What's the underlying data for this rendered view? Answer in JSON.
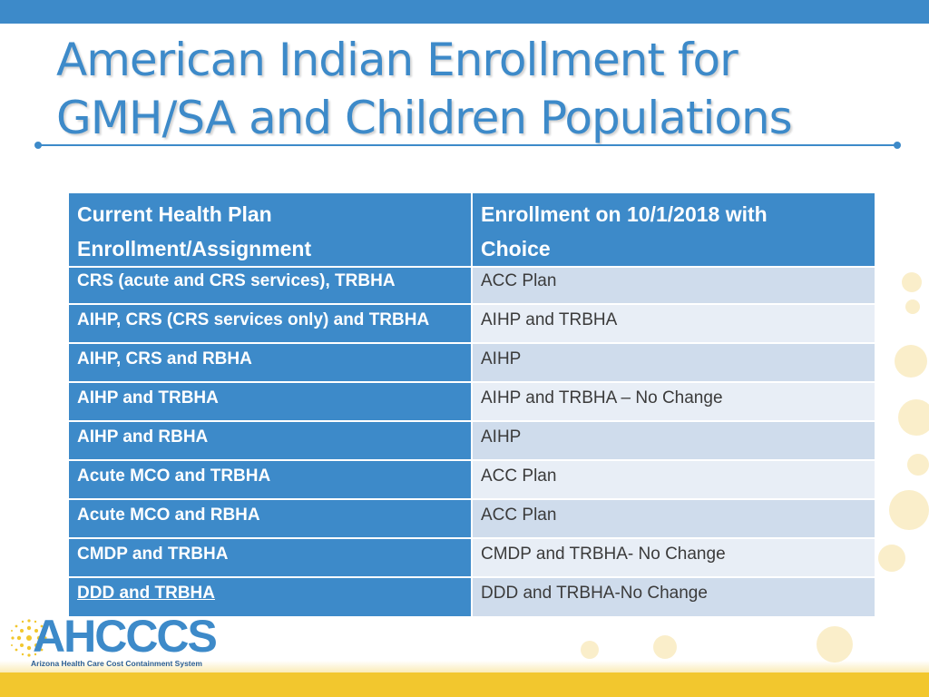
{
  "title": {
    "line1": "American Indian Enrollment for",
    "line2": "GMH/SA and Children Populations"
  },
  "table": {
    "headers": [
      {
        "line1": "Current Health Plan",
        "line2": "Enrollment/Assignment"
      },
      {
        "line1": "Enrollment on 10/1/2018 with",
        "line2": "Choice"
      }
    ],
    "rows": [
      {
        "current": "CRS (acute and CRS services), TRBHA",
        "enrollment": "ACC Plan"
      },
      {
        "current": "AIHP, CRS (CRS services only) and TRBHA",
        "enrollment": "AIHP and TRBHA"
      },
      {
        "current": "AIHP, CRS and RBHA",
        "enrollment": "AIHP"
      },
      {
        "current": "AIHP and TRBHA",
        "enrollment": "AIHP and TRBHA – No Change"
      },
      {
        "current": "AIHP and RBHA",
        "enrollment": "AIHP"
      },
      {
        "current": "Acute MCO and TRBHA",
        "enrollment": "ACC Plan"
      },
      {
        "current": "Acute MCO and RBHA",
        "enrollment": "ACC Plan"
      },
      {
        "current": "CMDP and TRBHA",
        "enrollment": "CMDP and TRBHA- No Change"
      },
      {
        "current": "DDD and TRBHA",
        "enrollment": "DDD and TRBHA-No Change"
      }
    ]
  },
  "logo": {
    "name": "AHCCCS",
    "subtitle": "Arizona Health Care Cost Containment System"
  },
  "colors": {
    "accent_blue": "#3d8ac9",
    "light_row": "#cfdcec",
    "lighter_row": "#e8eef6",
    "footer_yellow": "#f2c72e"
  }
}
